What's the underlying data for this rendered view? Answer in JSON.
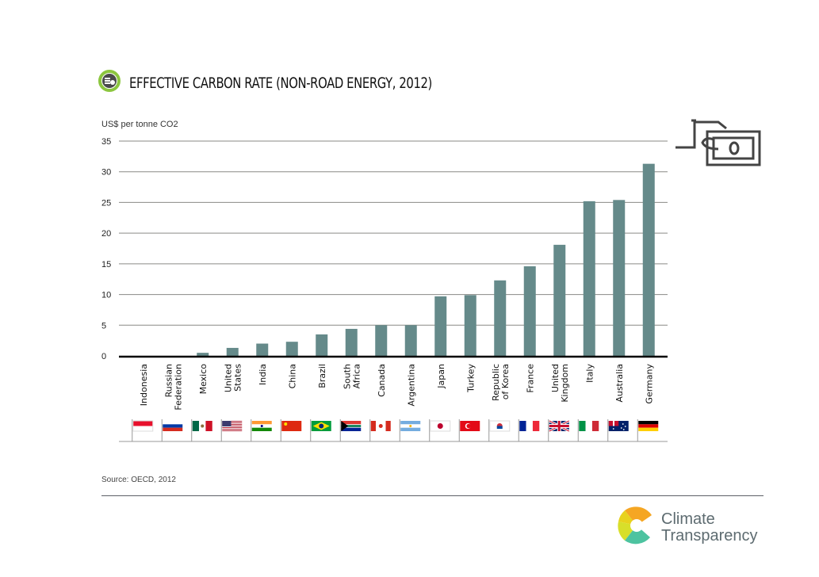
{
  "header": {
    "title": "EFFECTIVE CARBON RATE (NON-ROAD ENERGY, 2012)",
    "unit_label": "US$ per tonne CO",
    "unit_sub": "2"
  },
  "chart_data": {
    "type": "bar",
    "title": "EFFECTIVE CARBON RATE (NON-ROAD ENERGY, 2012)",
    "ylabel": "US$ per tonne CO2",
    "xlabel": "",
    "ylim": [
      0,
      35
    ],
    "yticks": [
      0,
      5,
      10,
      15,
      20,
      25,
      30,
      35
    ],
    "grid": true,
    "bar_color": "#658a8a",
    "categories": [
      [
        "Indonesia"
      ],
      [
        "Russian",
        "Federation"
      ],
      [
        "Mexico"
      ],
      [
        "United",
        "States"
      ],
      [
        "India"
      ],
      [
        "China"
      ],
      [
        "Brazil"
      ],
      [
        "South",
        "Africa"
      ],
      [
        "Canada"
      ],
      [
        "Argentina"
      ],
      [
        "Japan"
      ],
      [
        "Turkey"
      ],
      [
        "Republic",
        "of Korea"
      ],
      [
        "France"
      ],
      [
        "United",
        "Kingdom"
      ],
      [
        "Italy"
      ],
      [
        "Australia"
      ],
      [
        "Germany"
      ]
    ],
    "values": [
      0,
      0,
      0.5,
      1.3,
      2.0,
      2.3,
      3.5,
      4.4,
      5.0,
      5.0,
      9.7,
      9.9,
      12.3,
      14.6,
      18.1,
      25.2,
      25.4,
      31.3
    ],
    "flags": [
      "indonesia-flag",
      "russia-flag",
      "mexico-flag",
      "usa-flag",
      "india-flag",
      "china-flag",
      "brazil-flag",
      "south-africa-flag",
      "canada-flag",
      "argentina-flag",
      "japan-flag",
      "turkey-flag",
      "korea-flag",
      "france-flag",
      "uk-flag",
      "italy-flag",
      "australia-flag",
      "germany-flag"
    ]
  },
  "footer": {
    "source": "Source: OECD, 2012",
    "brand_line1": "Climate",
    "brand_line2": "Transparency"
  }
}
